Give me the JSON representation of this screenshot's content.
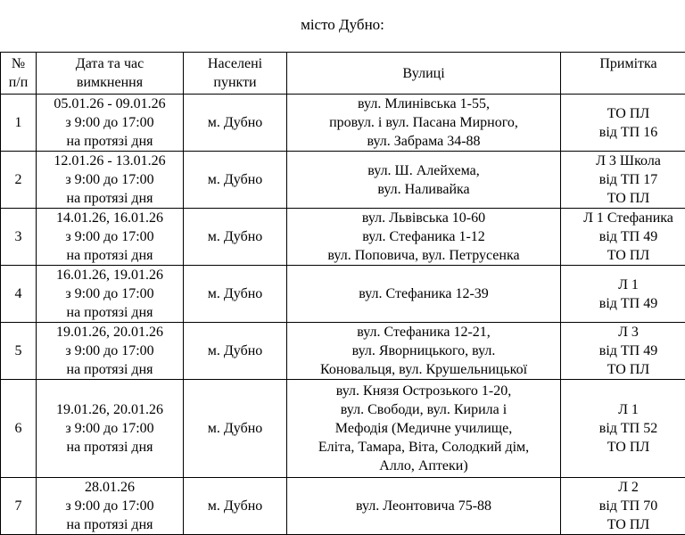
{
  "title": "місто Дубно:",
  "headers": [
    "№ п/п",
    "Дата та час вимкнення",
    "Населені пункти",
    "Вулиці",
    "Примітка"
  ],
  "header_lines": [
    [
      "№",
      "п/п"
    ],
    [
      "Дата та час",
      "вимкнення"
    ],
    [
      "Населені",
      "пункти"
    ],
    [
      "Вулиці"
    ],
    [
      "Примітка"
    ]
  ],
  "rows": [
    {
      "num": "1",
      "date": [
        "05.01.26 - 09.01.26",
        "з 9:00 до 17:00",
        "на протязі дня"
      ],
      "place": "м. Дубно",
      "streets": [
        "вул. Млинівська 1-55,",
        "провул. і вул. Пасана Мирного,",
        "вул. Забрама 34-88"
      ],
      "note": [
        "ТО ПЛ",
        "від ТП 16"
      ]
    },
    {
      "num": "2",
      "date": [
        "12.01.26 - 13.01.26",
        "з 9:00 до 17:00",
        "на протязі дня"
      ],
      "place": "м. Дубно",
      "streets": [
        "вул. Ш. Алейхема,",
        "вул. Наливайка"
      ],
      "note": [
        "Л 3 Школа",
        "від ТП 17",
        "ТО ПЛ"
      ]
    },
    {
      "num": "3",
      "date": [
        "14.01.26, 16.01.26",
        "з 9:00 до 17:00",
        "на протязі дня"
      ],
      "place": "м. Дубно",
      "streets": [
        "вул. Львівська 10-60",
        "вул. Стефаника 1-12",
        "вул. Поповича, вул. Петрусенка"
      ],
      "note": [
        "Л 1 Стефаника",
        "від ТП 49",
        "ТО ПЛ"
      ]
    },
    {
      "num": "4",
      "date": [
        "16.01.26, 19.01.26",
        "з 9:00 до 17:00",
        "на протязі дня"
      ],
      "place": "м. Дубно",
      "streets": [
        "вул. Стефаника 12-39"
      ],
      "note": [
        "Л 1",
        "від ТП 49"
      ]
    },
    {
      "num": "5",
      "date": [
        "19.01.26, 20.01.26",
        "з 9:00 до 17:00",
        "на протязі дня"
      ],
      "place": "м. Дубно",
      "streets": [
        "вул. Стефаника 12-21,",
        "вул. Яворницького, вул.",
        "Коновальця, вул. Крушельницької"
      ],
      "note": [
        "Л 3",
        "від ТП 49",
        "ТО ПЛ"
      ]
    },
    {
      "num": "6",
      "date": [
        "19.01.26, 20.01.26",
        "з 9:00 до 17:00",
        "на протязі дня"
      ],
      "place": "м. Дубно",
      "streets": [
        "вул. Князя Острозького 1-20,",
        "вул. Свободи, вул. Кирила і",
        "Мефодія (Медичне училище,",
        "Еліта, Тамара, Віта, Солодкий дім,",
        "Алло, Аптеки)"
      ],
      "note": [
        "Л 1",
        "від ТП 52",
        "ТО ПЛ"
      ]
    },
    {
      "num": "7",
      "date": [
        "28.01.26",
        "з 9:00 до 17:00",
        "на протязі дня"
      ],
      "place": "м. Дубно",
      "streets": [
        "вул. Леонтовича 75-88"
      ],
      "note": [
        "Л 2",
        "від ТП 70",
        "ТО ПЛ"
      ]
    }
  ]
}
